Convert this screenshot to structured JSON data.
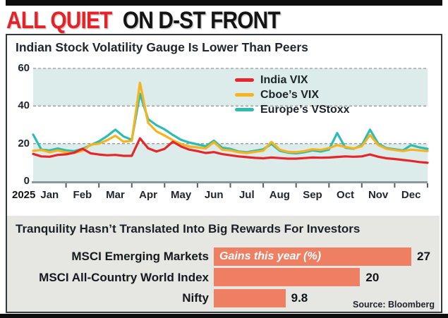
{
  "masthead": {
    "headline_red": "ALL QUIET",
    "headline_black": "ON D-ST FRONT"
  },
  "chart_data": [
    {
      "type": "line",
      "title": "Indian Stock Volatility Gauge Is Lower Than Peers",
      "year_label": "2025",
      "months": [
        "Jan",
        "Feb",
        "Mar",
        "Apr",
        "May",
        "Jun",
        "Jul",
        "Aug",
        "Sep",
        "Oct",
        "Nov",
        "Dec"
      ],
      "ylim": [
        0,
        60
      ],
      "y_ticks": [
        60,
        40,
        20,
        0
      ],
      "grid": "dashed horizontal gridlines at 20, 40, 60",
      "band_fill_color": "#dcecea",
      "band_fill_ranges": [
        [
          0,
          20
        ],
        [
          40,
          60
        ]
      ],
      "axis_color": "#8b9899",
      "legend_position": "top-right inside plot",
      "x_resolution": "about weekly, Jan through Dec 2025",
      "series": [
        {
          "name": "India VIX",
          "color": "#e5262b",
          "values": [
            14.5,
            13.2,
            13.0,
            14.0,
            14.3,
            15.2,
            17.3,
            14.8,
            14.2,
            13.8,
            14.0,
            13.5,
            13.5,
            22.8,
            17.5,
            15.8,
            17.2,
            21.0,
            18.5,
            16.8,
            16.0,
            15.0,
            15.5,
            14.4,
            13.8,
            13.2,
            12.8,
            12.4,
            12.2,
            12.6,
            12.3,
            12.0,
            12.0,
            12.3,
            12.6,
            12.5,
            12.6,
            12.9,
            13.2,
            13.0,
            13.2,
            14.2,
            13.0,
            12.2,
            11.8,
            11.3,
            10.8,
            10.2,
            9.8
          ]
        },
        {
          "name": "Cboe’s VIX",
          "color": "#f5b31f",
          "values": [
            16.2,
            16.6,
            15.4,
            16.4,
            15.4,
            15.0,
            16.2,
            19.4,
            20.0,
            21.8,
            24.2,
            21.0,
            21.5,
            52.3,
            31.0,
            26.5,
            24.3,
            21.8,
            19.8,
            18.4,
            18.0,
            17.4,
            20.8,
            16.8,
            16.4,
            15.4,
            15.0,
            15.6,
            16.2,
            20.9,
            16.8,
            15.6,
            15.4,
            16.0,
            17.0,
            16.6,
            17.6,
            19.2,
            18.2,
            17.4,
            18.6,
            24.6,
            19.2,
            17.2,
            16.6,
            16.0,
            16.8,
            16.4,
            16.0
          ]
        },
        {
          "name": "Europe’s VStoxx",
          "color": "#2ebcb2",
          "values": [
            24.8,
            16.8,
            16.4,
            17.4,
            16.4,
            16.0,
            17.2,
            19.2,
            21.2,
            24.0,
            27.4,
            23.8,
            22.0,
            46.5,
            33.0,
            29.8,
            27.6,
            24.6,
            22.0,
            20.6,
            19.6,
            18.6,
            21.6,
            17.8,
            17.2,
            15.8,
            15.4,
            16.2,
            17.0,
            19.8,
            16.2,
            15.2,
            14.8,
            15.4,
            16.4,
            15.8,
            16.8,
            25.6,
            17.8,
            17.2,
            19.2,
            27.4,
            20.0,
            17.6,
            17.0,
            16.4,
            19.2,
            18.0,
            17.2
          ]
        }
      ]
    },
    {
      "type": "bar",
      "orientation": "horizontal",
      "title": "Tranquility Hasn’t Translated Into Big Rewards For Investors",
      "annotation": "Gains this year (%)",
      "categories": [
        "MSCI Emerging Markets",
        "MSCI All-Country World Index",
        "Nifty"
      ],
      "values": [
        27,
        20,
        9.8
      ],
      "xlabel": "Gains this year (%)",
      "bar_color": "#ee7f63",
      "panel_color": "#e6e6e2",
      "source": "Source: Bloomberg"
    }
  ]
}
